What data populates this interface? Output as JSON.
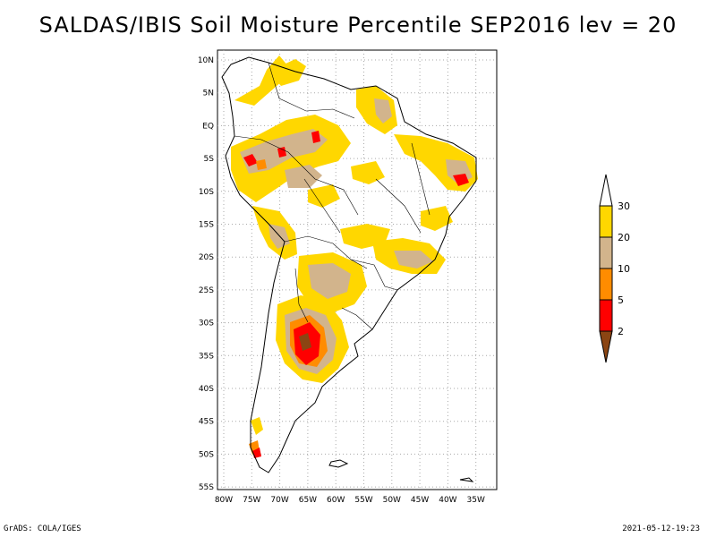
{
  "title": "SALDAS/IBIS Soil Moisture Percentile SEP2016 lev = 20",
  "footer": {
    "left": "GrADS: COLA/IGES",
    "right": "2021-05-12-19:23"
  },
  "map": {
    "region": "South America",
    "lat_ticks": [
      "10N",
      "5N",
      "EQ",
      "5S",
      "10S",
      "15S",
      "20S",
      "25S",
      "30S",
      "35S",
      "40S",
      "45S",
      "50S",
      "55S"
    ],
    "lon_ticks": [
      "80W",
      "75W",
      "70W",
      "65W",
      "60W",
      "55W",
      "50W",
      "45W",
      "40W",
      "35W"
    ],
    "gridlines": true
  },
  "legend": {
    "labels": [
      "30",
      "20",
      "10",
      "5",
      "2"
    ],
    "colors": [
      "#ffd700",
      "#d2b48c",
      "#ff8c00",
      "#ff0000",
      "#8b4513"
    ]
  },
  "colors": {
    "yellow": "#ffd700",
    "tan": "#d2b48c",
    "orange": "#ff8c00",
    "red": "#ff0000",
    "brown": "#8b4513"
  }
}
